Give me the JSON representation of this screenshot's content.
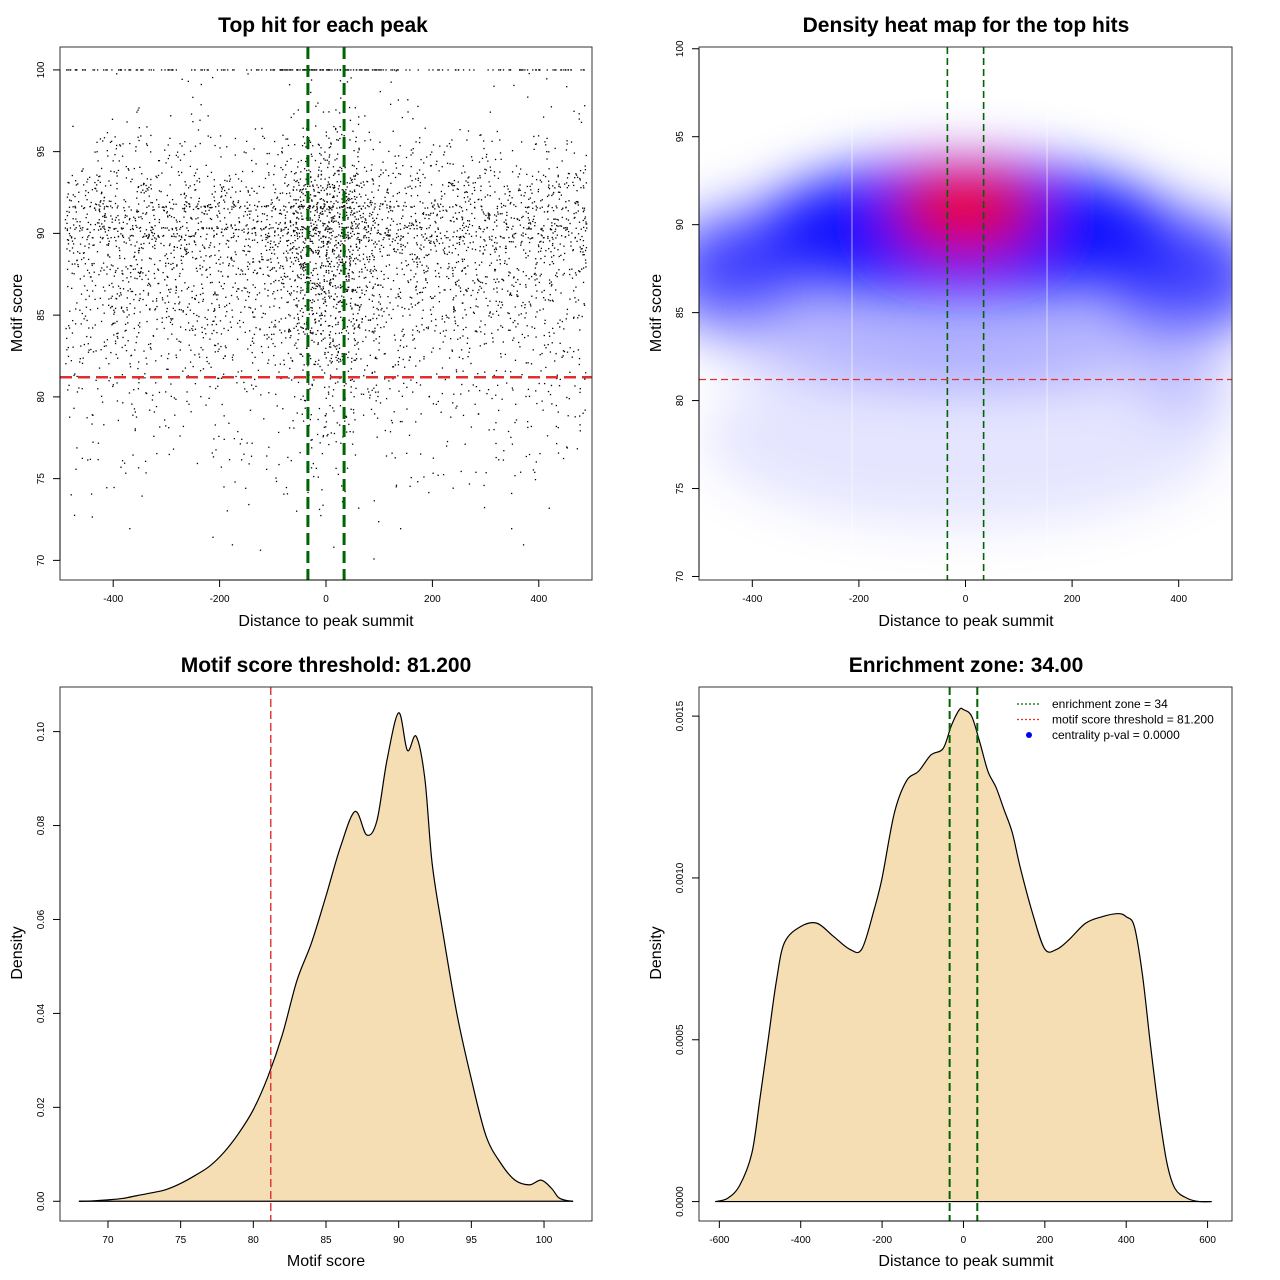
{
  "chart_data": [
    {
      "type": "scatter",
      "title": "Top hit for each peak",
      "xlabel": "Distance to peak summit",
      "ylabel": "Motif score",
      "xlim": [
        -500,
        500
      ],
      "ylim": [
        68.8,
        101.4
      ],
      "xticks": [
        -400,
        -200,
        0,
        200,
        400
      ],
      "yticks": [
        70,
        75,
        80,
        85,
        90,
        95,
        100
      ],
      "vlines": [
        -34,
        34
      ],
      "hline": 81.2,
      "vline_color": "#006400",
      "hline_color": "#e0302e",
      "point_color": "#000000",
      "n_points": 5000,
      "score_density": {
        "x": [
          68,
          70,
          72,
          74,
          76,
          78,
          80,
          82,
          84,
          86,
          87,
          88,
          89,
          90,
          91,
          92,
          93,
          94,
          96,
          98,
          99.8,
          101,
          102
        ],
        "y": [
          0.0,
          0.0005,
          0.0015,
          0.0035,
          0.0075,
          0.0135,
          0.021,
          0.033,
          0.05,
          0.072,
          0.083,
          0.077,
          0.088,
          0.104,
          0.095,
          0.093,
          0.06,
          0.042,
          0.013,
          0.003,
          0.0045,
          0.0003,
          0.0
        ]
      },
      "stripes": [
        100,
        91.6,
        90.3,
        89.8
      ]
    },
    {
      "type": "heatmap",
      "title": "Density heat map for the top hits",
      "xlabel": "Distance to peak summit",
      "ylabel": "Motif score",
      "xlim": [
        -500,
        500
      ],
      "ylim": [
        69.8,
        100.1
      ],
      "xticks": [
        -400,
        -200,
        0,
        200,
        400
      ],
      "yticks": [
        70,
        75,
        80,
        85,
        90,
        95,
        100
      ],
      "vlines": [
        -34,
        34
      ],
      "hline": 81.2,
      "grid_lines_x": [
        -213,
        153
      ],
      "colors": [
        "#ffffff",
        "#0000ff",
        "#ff0000"
      ],
      "peak": {
        "x": 0,
        "y": 90.8
      }
    },
    {
      "type": "area",
      "title": "Motif score threshold: 81.200",
      "xlabel": "Motif score",
      "ylabel": "Density",
      "xlim": [
        66.7,
        103.3
      ],
      "ylim": [
        -0.0042,
        0.1095
      ],
      "xticks": [
        70,
        75,
        80,
        85,
        90,
        95,
        100
      ],
      "yticks": [
        0.0,
        0.02,
        0.04,
        0.06,
        0.08,
        0.1
      ],
      "ytick_labels": [
        "0.00",
        "0.02",
        "0.04",
        "0.06",
        "0.08",
        "0.10"
      ],
      "vlines": [
        81.2
      ],
      "vline_color": "#e0302e",
      "fill": "#f5deb3",
      "x": [
        68,
        69,
        70,
        71,
        72,
        73,
        74,
        75,
        76,
        77,
        78,
        79,
        80,
        81,
        82,
        83,
        84,
        85,
        86,
        87,
        87.8,
        88.5,
        89.2,
        90,
        90.6,
        91.2,
        91.8,
        92.3,
        93,
        94,
        95,
        96,
        97,
        98,
        99,
        99.8,
        100.5,
        101,
        101.5,
        102
      ],
      "y": [
        0.0,
        0.0001,
        0.0003,
        0.0006,
        0.0012,
        0.0018,
        0.0025,
        0.0038,
        0.0055,
        0.0075,
        0.0105,
        0.0145,
        0.0195,
        0.0265,
        0.0355,
        0.047,
        0.055,
        0.065,
        0.0755,
        0.083,
        0.078,
        0.081,
        0.094,
        0.104,
        0.096,
        0.099,
        0.09,
        0.072,
        0.058,
        0.04,
        0.026,
        0.014,
        0.0082,
        0.0045,
        0.0035,
        0.0045,
        0.0028,
        0.0008,
        0.0002,
        0.0
      ]
    },
    {
      "type": "area",
      "title": "Enrichment zone: 34.00",
      "xlabel": "Distance to peak summit",
      "ylabel": "Density",
      "xlim": [
        -650,
        660
      ],
      "ylim": [
        -6e-05,
        0.00159
      ],
      "xticks": [
        -600,
        -400,
        -200,
        0,
        200,
        400,
        600
      ],
      "yticks": [
        0.0,
        0.0005,
        0.001,
        0.0015
      ],
      "ytick_labels": [
        "0.0000",
        "0.0005",
        "0.0010",
        "0.0015"
      ],
      "vlines": [
        -34,
        34
      ],
      "vline_color": "#006400",
      "fill": "#f5deb3",
      "x": [
        -610,
        -580,
        -550,
        -520,
        -500,
        -480,
        -460,
        -440,
        -400,
        -360,
        -320,
        -280,
        -250,
        -220,
        -200,
        -170,
        -140,
        -110,
        -80,
        -50,
        -30,
        -10,
        0,
        20,
        40,
        60,
        80,
        100,
        120,
        140,
        170,
        200,
        230,
        260,
        300,
        340,
        380,
        400,
        420,
        440,
        460,
        480,
        500,
        520,
        550,
        580,
        610
      ],
      "y": [
        0.0,
        1e-05,
        5e-05,
        0.00015,
        0.00032,
        0.0005,
        0.00068,
        0.0008,
        0.00085,
        0.00086,
        0.00082,
        0.00078,
        0.00078,
        0.0009,
        0.001,
        0.0012,
        0.0013,
        0.00133,
        0.00138,
        0.0014,
        0.00147,
        0.00152,
        0.00152,
        0.0015,
        0.00142,
        0.00133,
        0.00128,
        0.00121,
        0.00114,
        0.00103,
        0.00089,
        0.00078,
        0.00078,
        0.00081,
        0.00086,
        0.00088,
        0.00089,
        0.00088,
        0.00085,
        0.0007,
        0.00048,
        0.00028,
        0.00012,
        4e-05,
        1e-05,
        0.0,
        0.0
      ],
      "legend": {
        "position": "top-right",
        "items": [
          {
            "label": "enrichment zone = 34",
            "color": "#006400",
            "kind": "dotted-line"
          },
          {
            "label": "motif score threshold = 81.200",
            "color": "#e0302e",
            "kind": "dotted-line"
          },
          {
            "label": "centrality p-val = 0.0000",
            "color": "#0000ff",
            "kind": "point"
          }
        ]
      }
    }
  ]
}
